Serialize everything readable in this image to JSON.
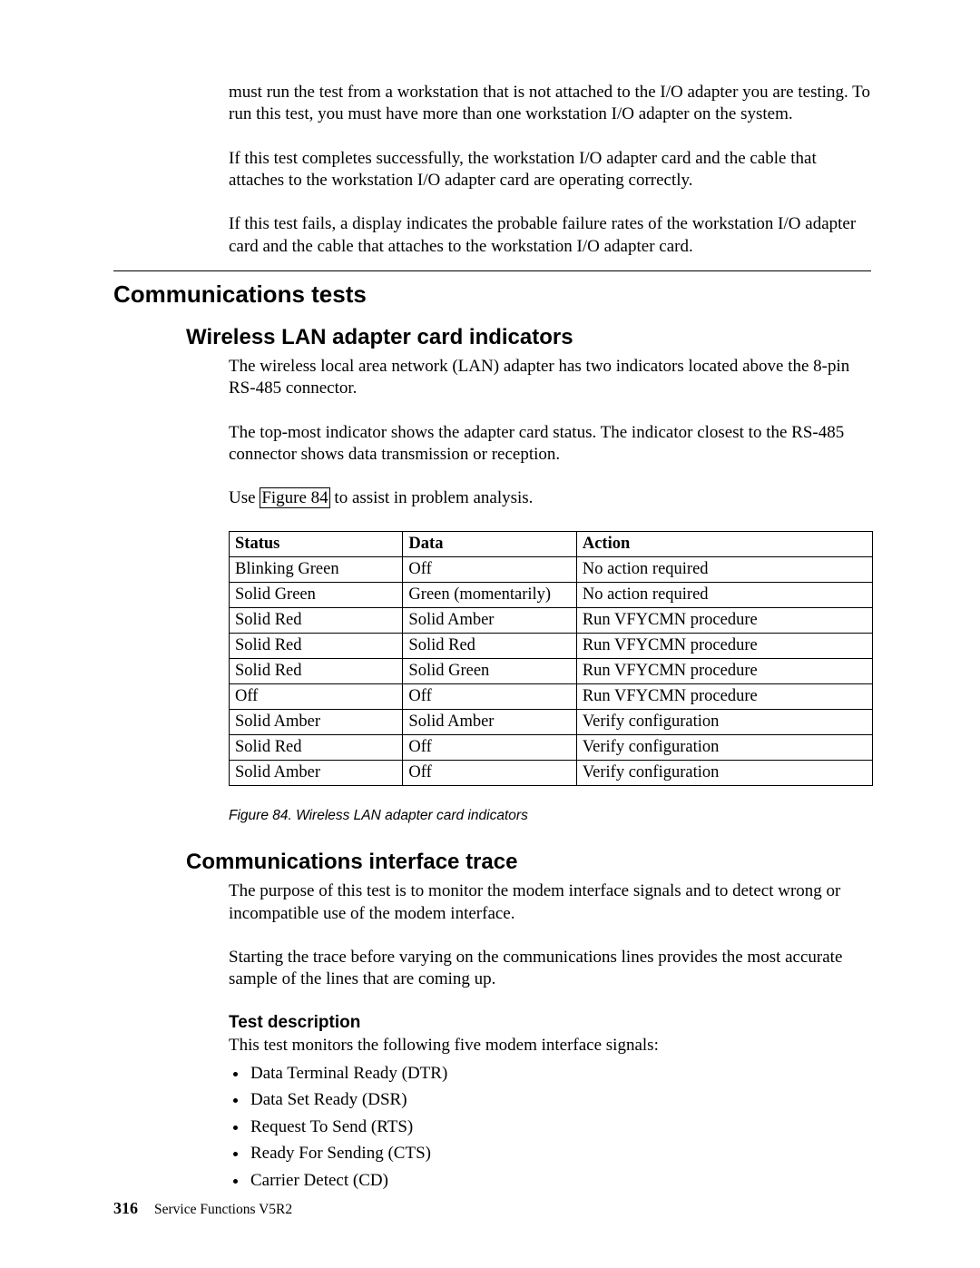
{
  "intro": {
    "p1": "must run the test from a workstation that is not attached to the I/O adapter you are testing. To run this test, you must have more than one workstation I/O adapter on the system.",
    "p2": "If this test completes successfully, the workstation I/O adapter card and the cable that attaches to the workstation I/O adapter card are operating correctly.",
    "p3": "If this test fails, a display indicates the probable failure rates of the workstation I/O adapter card and the cable that attaches to the workstation I/O adapter card."
  },
  "h1": "Communications tests",
  "wlan": {
    "title": "Wireless LAN adapter card indicators",
    "p1": "The wireless local area network (LAN) adapter has two indicators located above the 8-pin RS-485 connector.",
    "p2": "The top-most indicator shows the adapter card status. The indicator closest to the RS-485 connector shows data transmission or reception.",
    "p3a": "Use ",
    "p3link": "Figure 84",
    "p3b": " to assist in problem analysis.",
    "table": {
      "headers": [
        "Status",
        "Data",
        "Action"
      ],
      "col_widths": [
        "27%",
        "27%",
        "46%"
      ],
      "rows": [
        [
          "Blinking Green",
          "Off",
          "No action required"
        ],
        [
          "Solid Green",
          "Green (momentarily)",
          "No action required"
        ],
        [
          "Solid Red",
          "Solid Amber",
          "Run VFYCMN procedure"
        ],
        [
          "Solid Red",
          "Solid Red",
          "Run VFYCMN procedure"
        ],
        [
          "Solid Red",
          "Solid Green",
          "Run VFYCMN procedure"
        ],
        [
          "Off",
          "Off",
          "Run VFYCMN procedure"
        ],
        [
          "Solid Amber",
          "Solid Amber",
          "Verify configuration"
        ],
        [
          "Solid Red",
          "Off",
          "Verify configuration"
        ],
        [
          "Solid Amber",
          "Off",
          "Verify configuration"
        ]
      ]
    },
    "caption": "Figure 84. Wireless LAN adapter card indicators"
  },
  "cit": {
    "title": "Communications interface trace",
    "p1": "The purpose of this test is to monitor the modem interface signals and to detect wrong or incompatible use of the modem interface.",
    "p2": "Starting the trace before varying on the communications lines provides the most accurate sample of the lines that are coming up.",
    "testdesc_title": "Test description",
    "testdesc_intro": "This test monitors the following five modem interface signals:",
    "bullets": [
      "Data Terminal Ready (DTR)",
      "Data Set Ready (DSR)",
      "Request To Send (RTS)",
      "Ready For Sending (CTS)",
      "Carrier Detect (CD)"
    ]
  },
  "footer": {
    "page": "316",
    "title": "Service Functions V5R2"
  }
}
